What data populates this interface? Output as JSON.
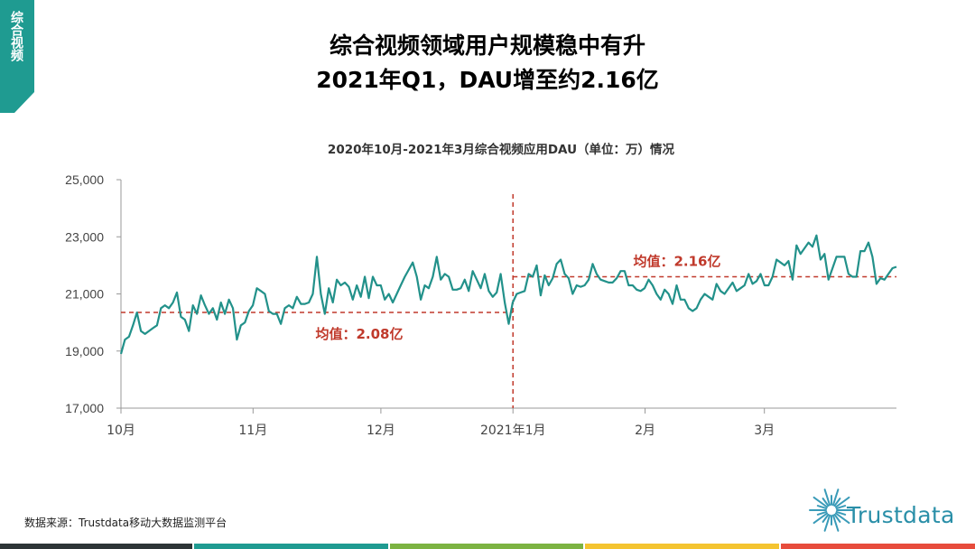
{
  "side_tag": {
    "text": "综合视频"
  },
  "header": {
    "line1": "综合视频领域用户规模稳中有升",
    "line2": "2021年Q1，DAU增至约2.16亿"
  },
  "footer": {
    "source": "数据来源：Trustdata移动大数据监测平台",
    "brand": "Trustdata"
  },
  "colors": {
    "accent": "#1f9b91",
    "line": "#22918a",
    "ref": "#c0392b",
    "bottom_bar": [
      "#2d3436",
      "#1f9b91",
      "#7cb342",
      "#f4c430",
      "#e74c3c"
    ]
  },
  "chart_data": {
    "type": "line",
    "title": "2020年10月-2021年3月综合视频应用DAU（单位：万）情况",
    "xlabel": "",
    "ylabel": "",
    "ylim": [
      17000,
      25000
    ],
    "yticks": [
      17000,
      19000,
      21000,
      23000,
      25000
    ],
    "ytick_labels": [
      "17,000",
      "19,000",
      "21,000",
      "23,000",
      "25,000"
    ],
    "x_tick_labels": [
      "10月",
      "11月",
      "12月",
      "2021年1月",
      "2月",
      "3月"
    ],
    "x_tick_days": [
      0,
      31,
      61,
      92,
      123,
      151
    ],
    "x_max_day": 182,
    "grid": false,
    "series": [
      {
        "values": [
          18900,
          19400,
          19500,
          19900,
          20350,
          19700,
          19600,
          19700,
          19800,
          19900,
          20500,
          20600,
          20500,
          20700,
          21050,
          20200,
          20100,
          19700,
          20600,
          20300,
          20950,
          20600,
          20300,
          20500,
          20100,
          20700,
          20300,
          20800,
          20500,
          19400,
          19900,
          20000,
          20400,
          20600,
          21200,
          21100,
          21000,
          20400,
          20300,
          20300,
          19950,
          20500,
          20600,
          20500,
          20900,
          20650,
          20650,
          20700,
          21000,
          22300,
          21000,
          20300,
          21200,
          20700,
          21500,
          21300,
          21400,
          21250,
          20800,
          21300,
          20900,
          21600,
          20850,
          21600,
          21300,
          21300,
          20800,
          21000,
          20700,
          21000,
          21300,
          21600,
          21850,
          22100,
          21600,
          20800,
          21300,
          21200,
          21600,
          22300,
          21500,
          21700,
          21600,
          21150,
          21150,
          21200,
          21500,
          21100,
          21800,
          21500,
          21200,
          21700,
          21100,
          20900,
          21050,
          21700,
          20700,
          19950,
          20700,
          21000,
          21050,
          21100,
          21700,
          21600,
          22000,
          20950,
          21650,
          21300,
          21550,
          22050,
          22200,
          21700,
          21550,
          21000,
          21300,
          21250,
          21300,
          21500,
          22050,
          21700,
          21500,
          21450,
          21400,
          21400,
          21550,
          21800,
          21800,
          21300,
          21300,
          21150,
          21100,
          21200,
          21500,
          21300,
          21000,
          20800,
          21150,
          21000,
          20650,
          21300,
          20800,
          20800,
          20500,
          20400,
          20500,
          20800,
          21000,
          20900,
          20800,
          21350,
          21100,
          21000,
          21200,
          21400,
          21100,
          21200,
          21300,
          21700,
          21350,
          21450,
          21700,
          21300,
          21300,
          21600,
          22200,
          22100,
          22000,
          22150,
          21500,
          22700,
          22400,
          22600,
          22800,
          22650,
          23050,
          22200,
          22400,
          21500,
          21900,
          22300,
          22300,
          22300,
          21700,
          21600,
          21600,
          22500,
          22500,
          22800,
          22300,
          21350,
          21550,
          21500,
          21700,
          21900,
          21950
        ]
      }
    ],
    "reference_lines": [
      {
        "label": "均值：2.08亿",
        "value": 20350,
        "from_day": 0,
        "to_day": 92
      },
      {
        "label": "均值：2.16亿",
        "value": 21600,
        "from_day": 92,
        "to_day": 182
      }
    ],
    "divider_day": 92
  }
}
